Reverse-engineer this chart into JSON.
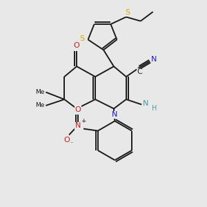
{
  "bg_color": "#e8e8e8",
  "bond_color": "#1a1a1a",
  "N_color": "#1a1acc",
  "O_color": "#cc1a1a",
  "S_color": "#ccaa00",
  "NH_color": "#4a9a9a",
  "lw": 1.4,
  "fs": 8.0,
  "fs_small": 6.5,
  "xlim": [
    0,
    10
  ],
  "ylim": [
    0,
    10
  ]
}
